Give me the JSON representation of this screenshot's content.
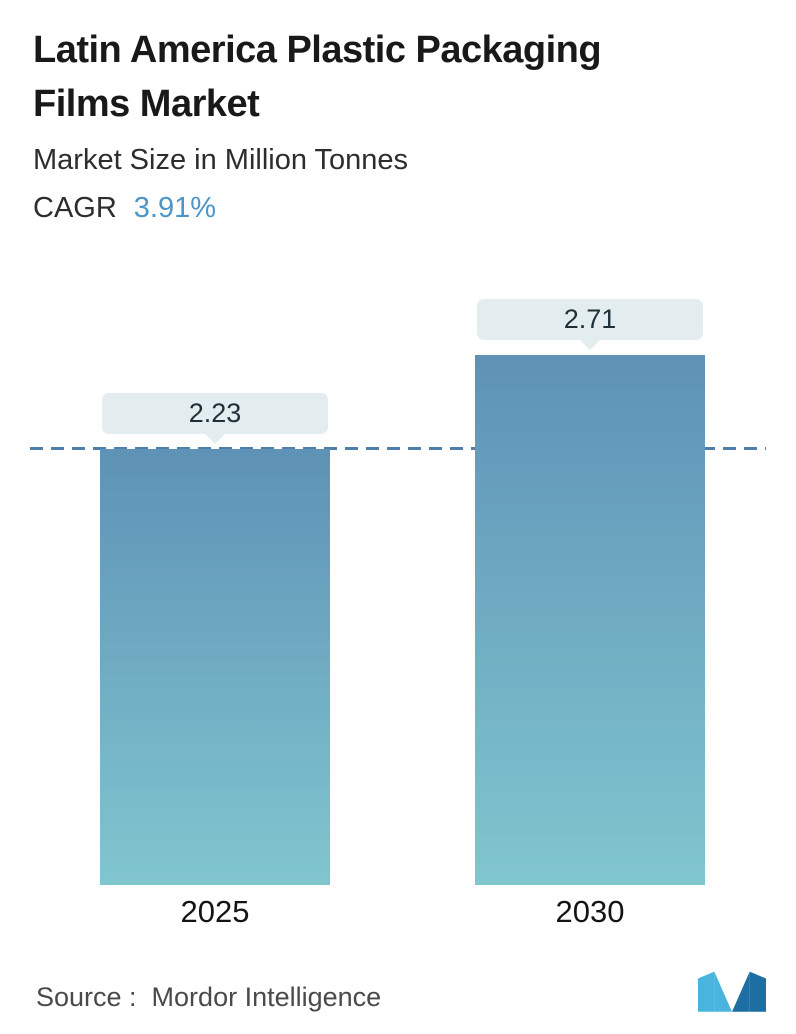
{
  "header": {
    "title_line1": "Latin America Plastic Packaging",
    "title_line2": "Films Market",
    "subtitle": "Market Size in Million Tonnes",
    "cagr_label": "CAGR",
    "cagr_value": "3.91%"
  },
  "chart_data": {
    "type": "bar",
    "title": "Latin America Plastic Packaging Films Market",
    "subtitle": "Market Size in Million Tonnes",
    "cagr": "3.91%",
    "categories": [
      "2025",
      "2030"
    ],
    "values": [
      2.23,
      2.71
    ],
    "unit": "Million Tonnes",
    "ylim": [
      0,
      2.71
    ],
    "reference_line": 2.23,
    "grid": false,
    "data_labels": [
      "2.23",
      "2.71"
    ]
  },
  "footer": {
    "source_label": "Source :  Mordor Intelligence",
    "logo_name": "mordor-intelligence-logo"
  },
  "colors": {
    "accent": "#4d96c8",
    "bar_top": "#5e92b6",
    "bar_bottom": "#80c6cf",
    "tooltip_bg": "#e3edf0",
    "dashed_line": "#4d7fa8",
    "logo_light": "#49b5de",
    "logo_dark": "#1d6fa3"
  }
}
